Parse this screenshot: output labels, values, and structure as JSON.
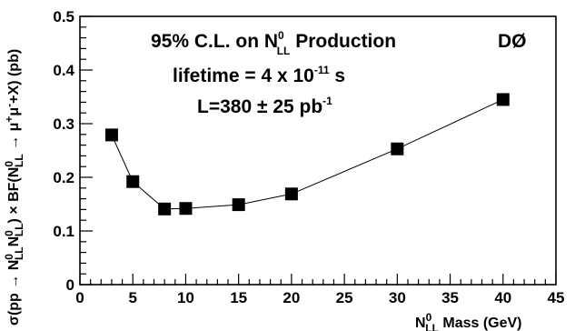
{
  "chart_data": {
    "type": "scatter",
    "title": "95% C.L. on N⁰LL Production",
    "annotations": {
      "line1": {
        "pre": "95% C.L. on N",
        "sup": "0",
        "sub": "LL",
        "post": " Production"
      },
      "line2": {
        "pre": "lifetime = 4 x 10",
        "sup": "-11",
        "post": " s"
      },
      "line3": {
        "pre": "L=380 ± 25 pb",
        "sup": "-1"
      },
      "experiment": "DØ"
    },
    "xlabel": {
      "pre": "N",
      "sup": "0",
      "sub": "LL",
      "post": " Mass (GeV)"
    },
    "ylabel": {
      "seg1": "σ(pp → N",
      "sup1": "0",
      "sub1": "LL",
      "seg2": "N",
      "sup2": "0",
      "sub2": "LL",
      "seg3": ") × BF(N",
      "sup3": "0",
      "sub3": "LL",
      "seg4": " → μ",
      "sup4": "+",
      "seg5": "μ",
      "sup5": "-",
      "seg6": "+X) (pb)"
    },
    "xlim": [
      0,
      45
    ],
    "ylim": [
      0,
      0.5
    ],
    "x_ticks": [
      "0",
      "5",
      "10",
      "15",
      "20",
      "25",
      "30",
      "35",
      "40",
      "45"
    ],
    "y_ticks": [
      "0",
      "0.1",
      "0.2",
      "0.3",
      "0.4",
      "0.5"
    ],
    "series": [
      {
        "marker": "filled-square",
        "line": true,
        "color": "#000000",
        "x": [
          3,
          5,
          8,
          10,
          15,
          20,
          30,
          40
        ],
        "y": [
          0.279,
          0.192,
          0.141,
          0.142,
          0.149,
          0.169,
          0.253,
          0.345
        ]
      }
    ],
    "grid": false
  }
}
